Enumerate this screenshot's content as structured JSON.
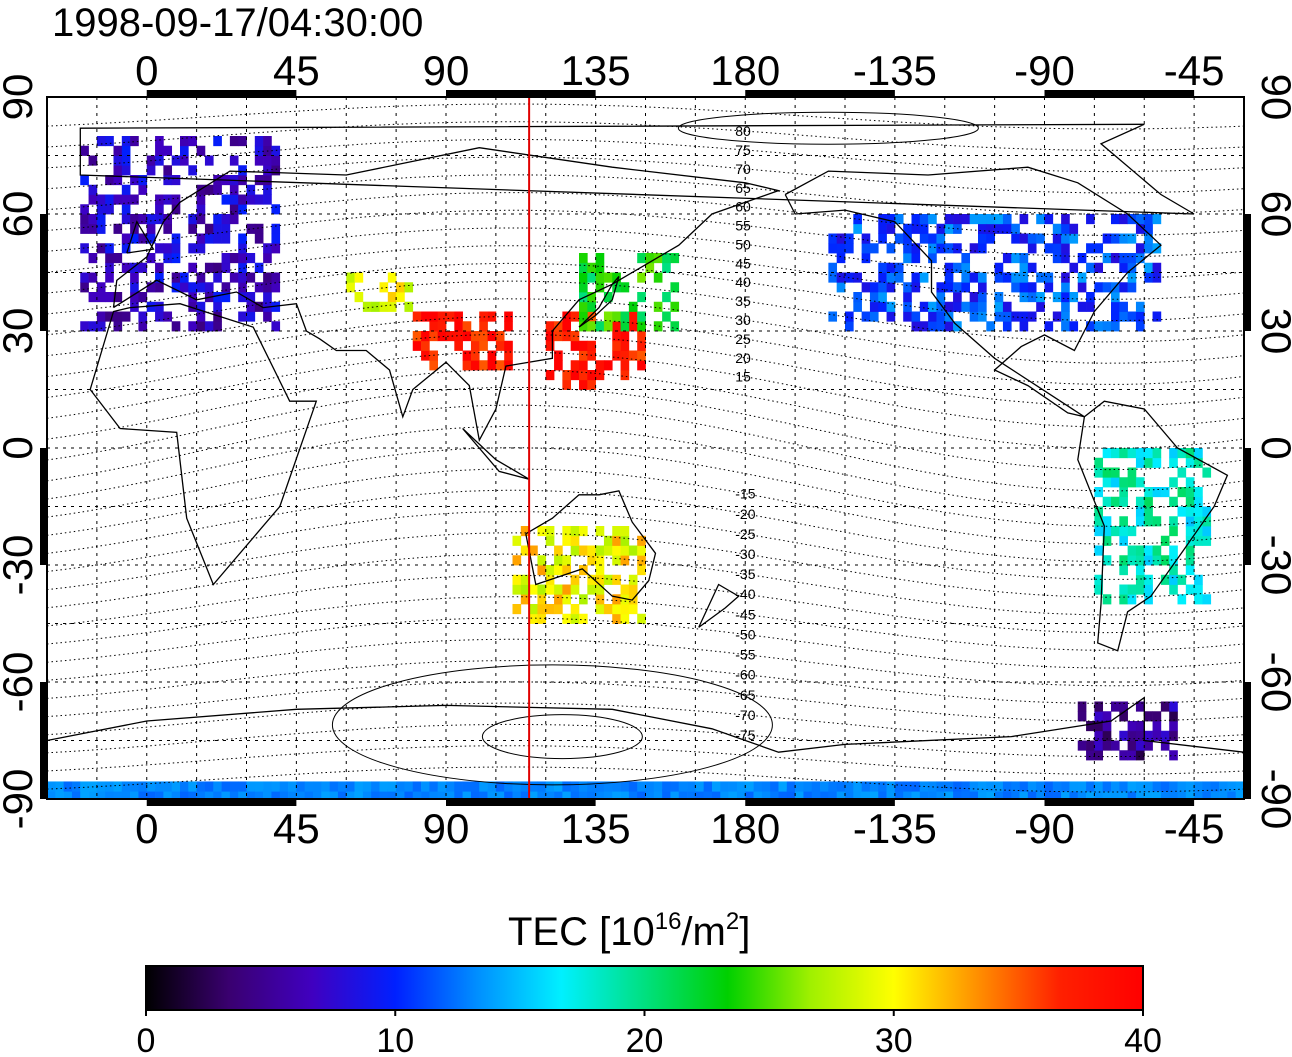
{
  "title": "1998-09-17/04:30:00",
  "map": {
    "type": "global TEC map",
    "projection": "equirectangular",
    "lon_center": 150,
    "lon_ticks": [
      "0",
      "45",
      "90",
      "135",
      "180",
      "-135",
      "-90",
      "-45"
    ],
    "lat_ticks": [
      "90",
      "60",
      "30",
      "0",
      "-30",
      "-60",
      "-90"
    ],
    "grid": true,
    "marker_meridian_lon": 115,
    "marker_color": "#e00000",
    "contour_labels": [
      "80",
      "75",
      "70",
      "65",
      "60",
      "55",
      "50",
      "45",
      "40",
      "35",
      "30",
      "25",
      "20",
      "15",
      "-15",
      "-20",
      "-25",
      "-30",
      "-35",
      "-40",
      "-45",
      "-50",
      "-55",
      "-60",
      "-65",
      "-70",
      "-75"
    ]
  },
  "colorbar": {
    "title": "TEC  [10",
    "title_sup": "16",
    "title_mid": "/m",
    "title_sup2": "2",
    "title_end": "]",
    "min": 0,
    "max": 40,
    "tick_labels": [
      "0",
      "10",
      "20",
      "30",
      "40"
    ],
    "colormap": [
      "#000000",
      "#3a0070",
      "#4000c0",
      "#0020ff",
      "#0090ff",
      "#00f0ff",
      "#00e080",
      "#00d000",
      "#a0f000",
      "#ffff00",
      "#ff9000",
      "#ff2000",
      "#ff0000"
    ]
  },
  "chart_data": {
    "type": "heatmap",
    "title": "1998-09-17/04:30:00",
    "xlim": [
      -30,
      330
    ],
    "ylim": [
      -90,
      90
    ],
    "value_range": [
      0,
      40
    ],
    "regions": [
      {
        "lon": [
          -20,
          40
        ],
        "lat": [
          30,
          80
        ],
        "tec": 7
      },
      {
        "lon": [
          60,
          80
        ],
        "lat": [
          35,
          45
        ],
        "tec": 29
      },
      {
        "lon": [
          80,
          110
        ],
        "lat": [
          20,
          35
        ],
        "tec": 38
      },
      {
        "lon": [
          120,
          150
        ],
        "lat": [
          15,
          35
        ],
        "tec": 38
      },
      {
        "lon": [
          130,
          160
        ],
        "lat": [
          30,
          50
        ],
        "tec": 23
      },
      {
        "lon": [
          -155,
          -55
        ],
        "lat": [
          30,
          60
        ],
        "tec": 11
      },
      {
        "lon": [
          110,
          150
        ],
        "lat": [
          -45,
          -20
        ],
        "tec": 30
      },
      {
        "lon": [
          -75,
          -40
        ],
        "lat": [
          -40,
          0
        ],
        "tec": 18
      },
      {
        "lon": [
          -80,
          -50
        ],
        "lat": [
          -80,
          -65
        ],
        "tec": 5
      },
      {
        "lon": [
          -30,
          330
        ],
        "lat": [
          -90,
          -86
        ],
        "tec": 13
      }
    ]
  }
}
